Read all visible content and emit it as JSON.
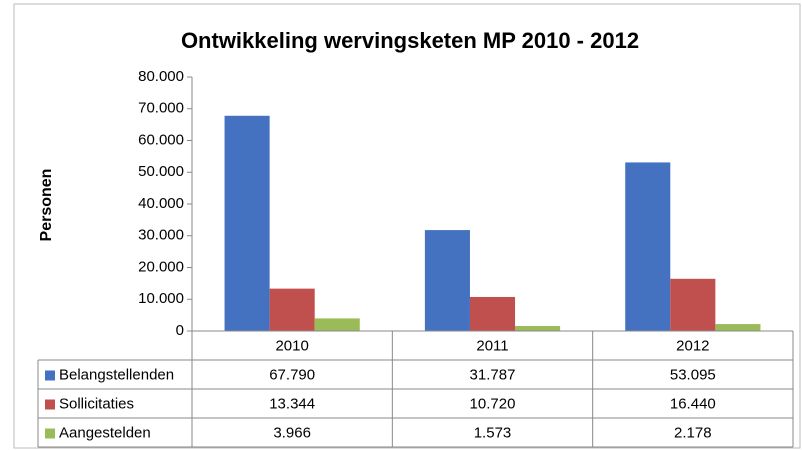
{
  "chart_data": {
    "type": "bar",
    "title": "Ontwikkeling wervingsketen MP 2010 - 2012",
    "y_label": "Personen",
    "categories": [
      "2010",
      "2011",
      "2012"
    ],
    "series": [
      {
        "name": "Belangstellenden",
        "color": "#4472c0",
        "values": [
          67790,
          31787,
          53095
        ],
        "value_labels": [
          "67.790",
          "31.787",
          "53.095"
        ]
      },
      {
        "name": "Sollicitaties",
        "color": "#c0504d",
        "values": [
          13344,
          10720,
          16440
        ],
        "value_labels": [
          "13.344",
          "10.720",
          "16.440"
        ]
      },
      {
        "name": "Aangestelden",
        "color": "#9bbb59",
        "values": [
          3966,
          1573,
          2178
        ],
        "value_labels": [
          "3.966",
          "1.573",
          "2.178"
        ]
      }
    ],
    "ylim": [
      0,
      80000
    ],
    "yticks": [
      0,
      {
        "value": 10000,
        "label": "10.000"
      },
      {
        "value": 20000,
        "label": "20.000"
      },
      {
        "value": 30000,
        "label": "30.000"
      },
      {
        "value": 40000,
        "label": "40.000"
      },
      {
        "value": 50000,
        "label": "50.000"
      },
      {
        "value": 60000,
        "label": "60.000"
      },
      {
        "value": 70000,
        "label": "70.000"
      },
      {
        "value": 80000,
        "label": "80.000"
      }
    ],
    "grid": false,
    "data_table": true
  }
}
